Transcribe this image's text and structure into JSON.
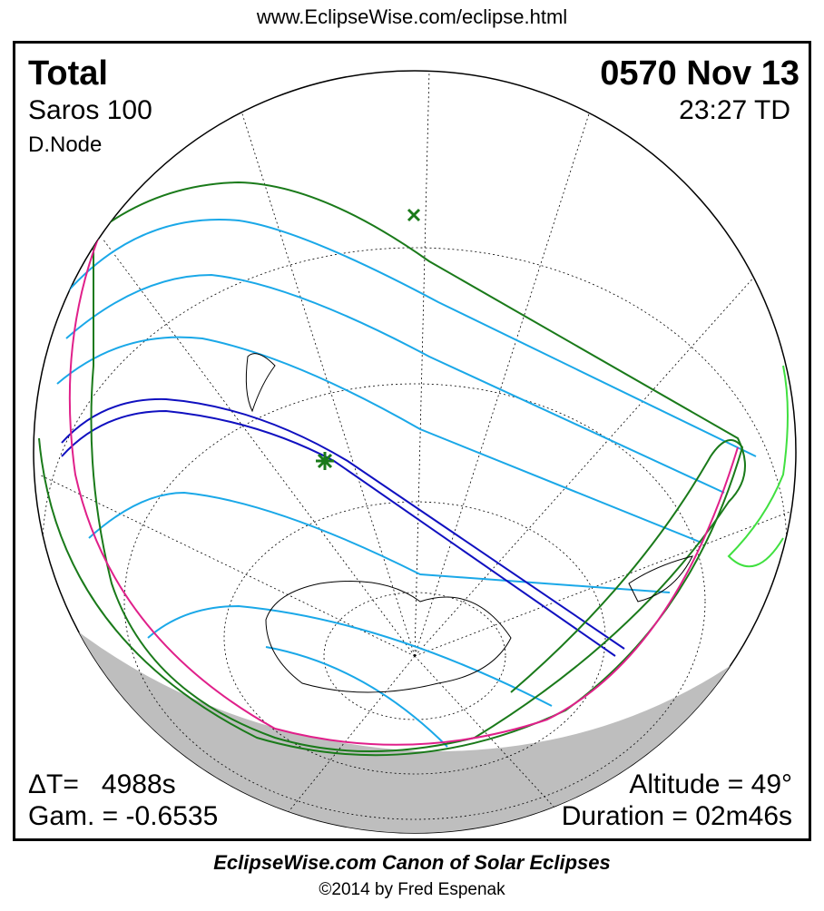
{
  "header": {
    "url": "www.EclipseWise.com/eclipse.html"
  },
  "eclipse": {
    "type": "Total",
    "saros": "Saros 100",
    "node": "D.Node",
    "date": "0570 Nov 13",
    "time": "23:27 TD",
    "delta_t": "ΔT=   4988s",
    "gamma": "Gam. = -0.6535",
    "altitude": "Altitude = 49°",
    "duration": "Duration = 02m46s"
  },
  "footer": {
    "title": "EclipseWise.com Canon of Solar Eclipses",
    "copyright": "©2014 by Fred Espenak"
  },
  "colors": {
    "penumbral_limits": "#1a7a1a",
    "partial_lines": "#1aa8e8",
    "central_path": "#1010c0",
    "rise_set": "#e0208a",
    "night": "#bebebe",
    "coast_new": "#40e040"
  }
}
